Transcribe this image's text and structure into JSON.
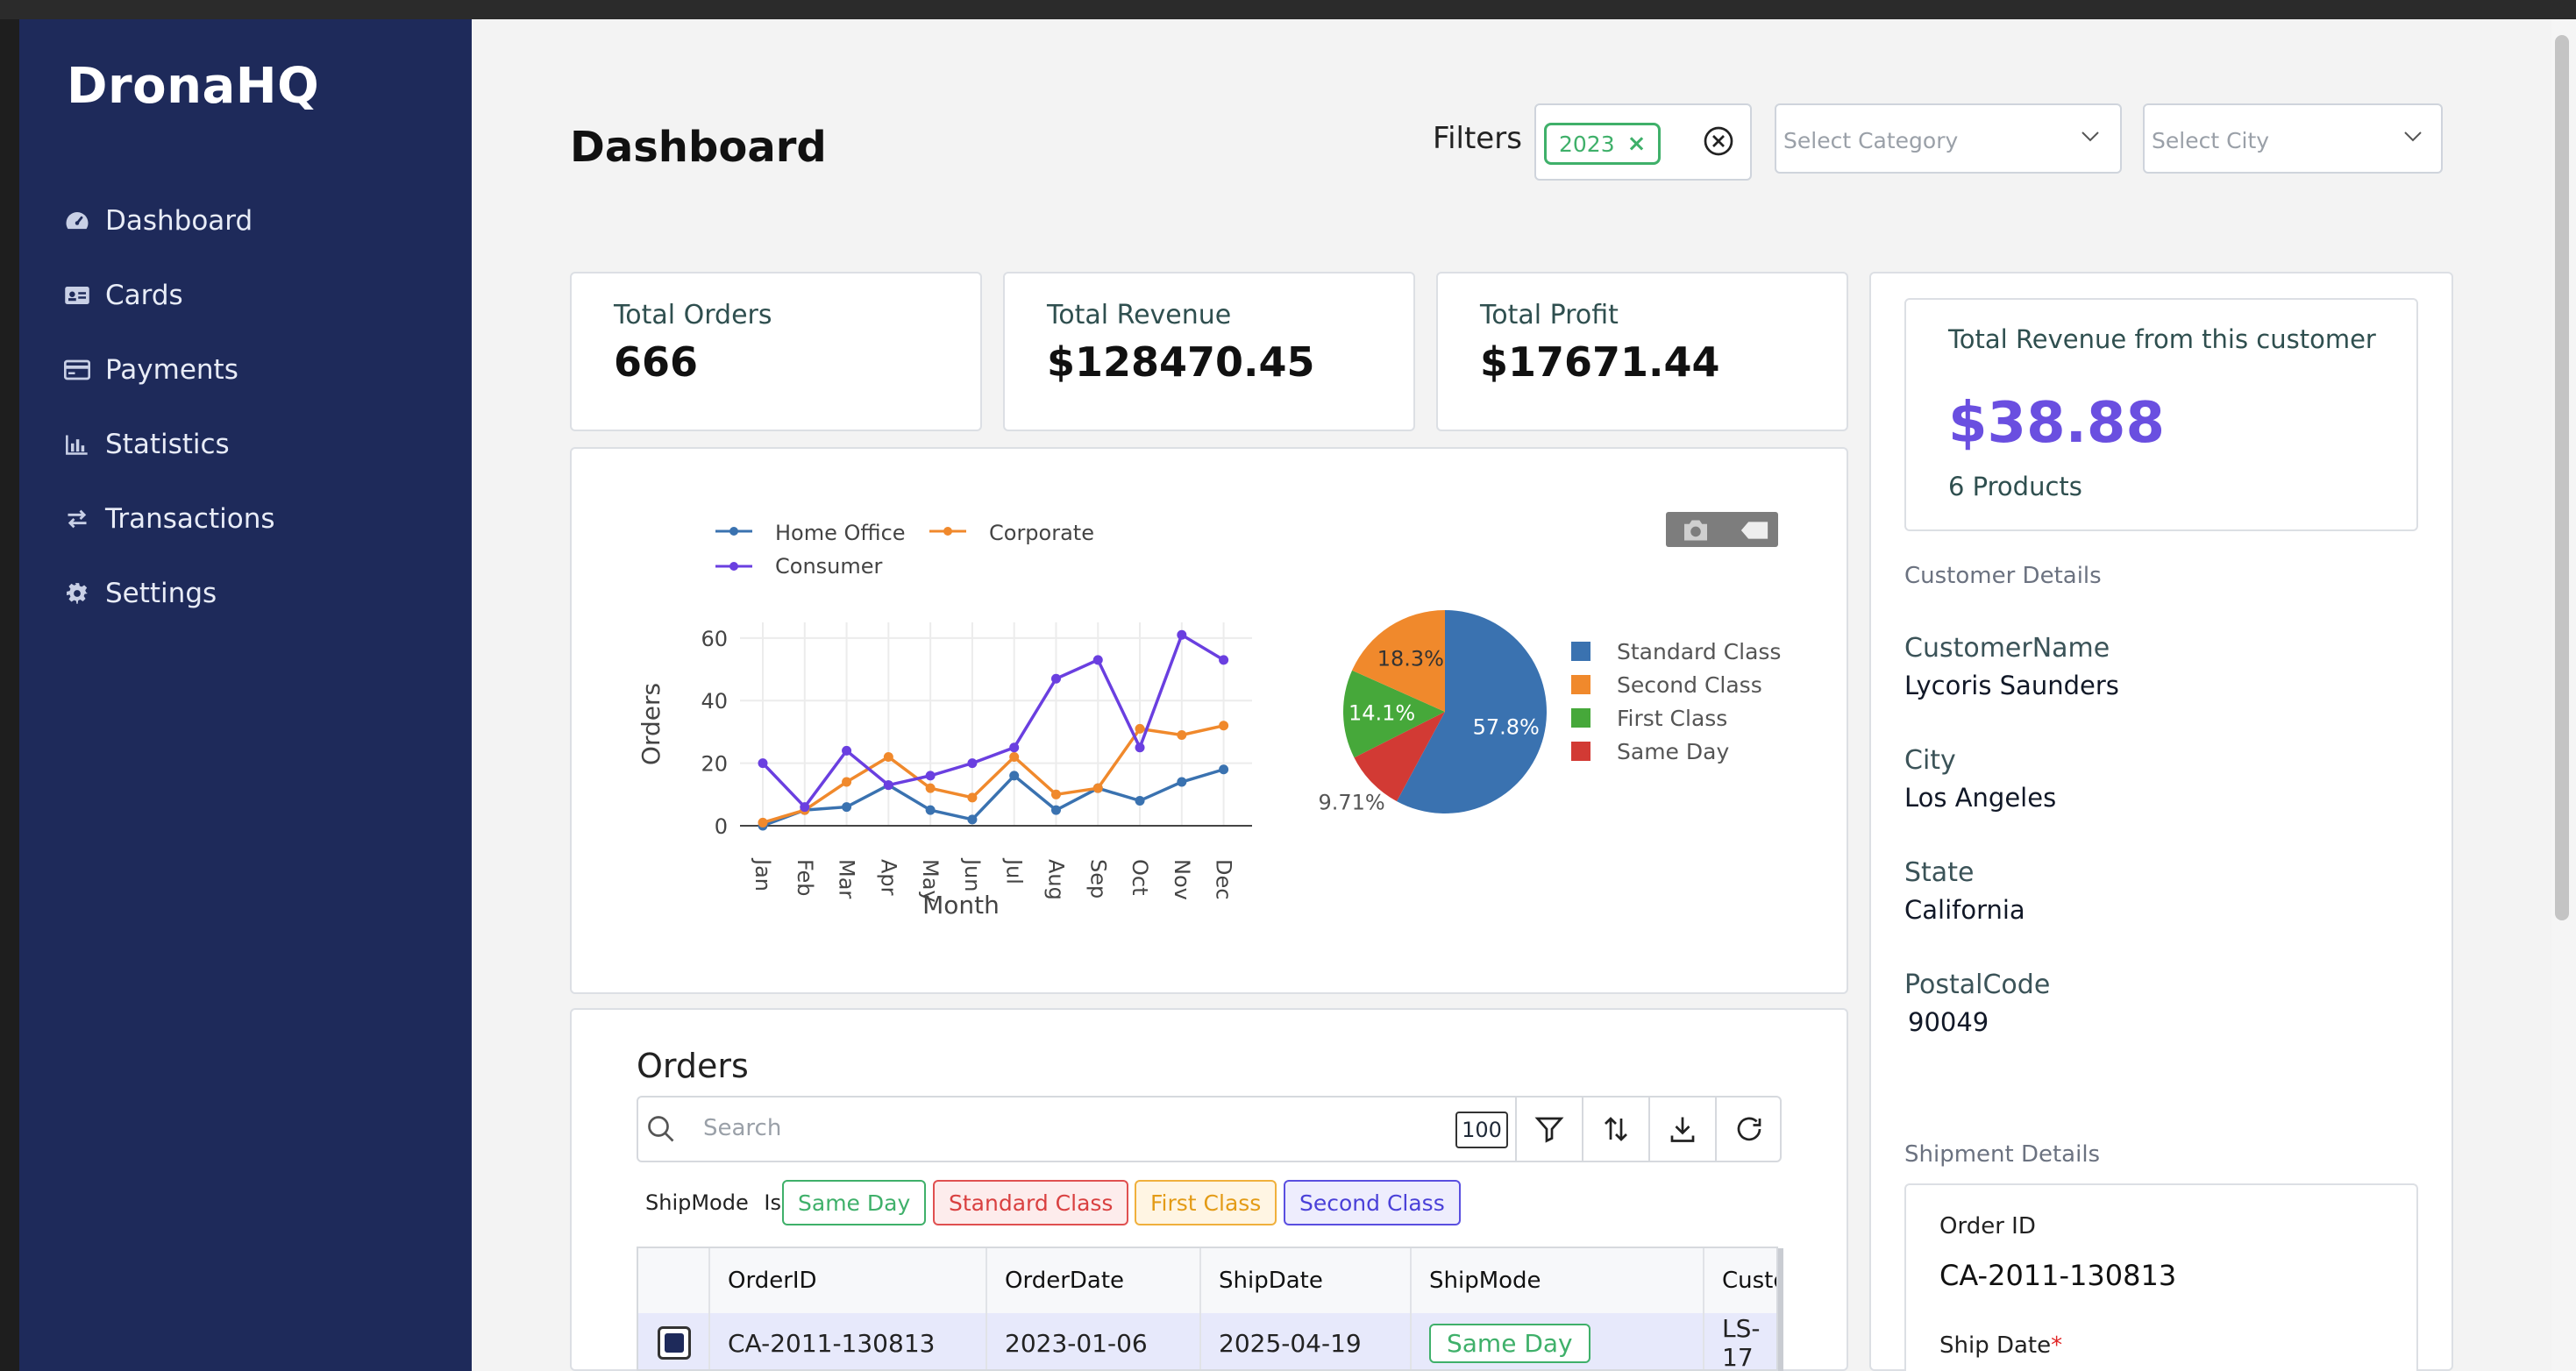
{
  "app": {
    "brand": "DronaHQ"
  },
  "sidebar": {
    "items": [
      {
        "label": "Dashboard",
        "icon": "gauge-icon"
      },
      {
        "label": "Cards",
        "icon": "id-card-icon"
      },
      {
        "label": "Payments",
        "icon": "credit-card-icon"
      },
      {
        "label": "Statistics",
        "icon": "bar-chart-icon"
      },
      {
        "label": "Transactions",
        "icon": "swap-arrows-icon"
      },
      {
        "label": "Settings",
        "icon": "gear-icon"
      }
    ]
  },
  "header": {
    "title": "Dashboard",
    "filters_label": "Filters",
    "year_chip": "2023",
    "category_placeholder": "Select Category",
    "city_placeholder": "Select City"
  },
  "kpis": [
    {
      "label": "Total Orders",
      "value": "666"
    },
    {
      "label": "Total Revenue",
      "value": "$128470.45"
    },
    {
      "label": "Total Profit",
      "value": "$17671.44"
    }
  ],
  "customer_panel": {
    "revenue_label": "Total Revenue from this customer",
    "revenue_value": "$38.88",
    "products": "6 Products",
    "section_customer": "Customer Details",
    "name_label": "CustomerName",
    "name_value": "Lycoris Saunders",
    "city_label": "City",
    "city_value": "Los Angeles",
    "state_label": "State",
    "state_value": "California",
    "postal_label": "PostalCode",
    "postal_value": "90049",
    "section_shipment": "Shipment Details",
    "order_id_label": "Order ID",
    "order_id_value": "CA-2011-130813",
    "ship_date_label": "Ship Date",
    "required_mark": "*"
  },
  "orders": {
    "title": "Orders",
    "search_placeholder": "Search",
    "page_size": "100",
    "filter_prefix": "ShipMode",
    "filter_op": "Is",
    "tags": [
      "Same Day",
      "Standard Class",
      "First Class",
      "Second Class"
    ],
    "columns": [
      "OrderID",
      "OrderDate",
      "ShipDate",
      "ShipMode",
      "Custo"
    ],
    "rows": [
      {
        "OrderID": "CA-2011-130813",
        "OrderDate": "2023-01-06",
        "ShipDate": "2025-04-19",
        "ShipMode": "Same Day",
        "Customer": "LS-17"
      }
    ]
  },
  "colors": {
    "sidebar": "#1e2a5a",
    "accent_purple": "#6a4fe0",
    "home_office": "#3a72b0",
    "corporate": "#f0892c",
    "consumer": "#6a3fe0",
    "standard_class": "#3a72b0",
    "second_class": "#f0892c",
    "first_class": "#46a83a",
    "same_day": "#d23a34"
  },
  "chart_data": [
    {
      "type": "line",
      "xlabel": "Month",
      "ylabel": "Orders",
      "ylim": [
        0,
        65
      ],
      "yticks": [
        0,
        20,
        40,
        60
      ],
      "grid": true,
      "legend": "top-left",
      "categories": [
        "Jan",
        "Feb",
        "Mar",
        "Apr",
        "May",
        "Jun",
        "Jul",
        "Aug",
        "Sep",
        "Oct",
        "Nov",
        "Dec"
      ],
      "series": [
        {
          "name": "Home Office",
          "color": "#3a72b0",
          "values": [
            0,
            5,
            6,
            13,
            5,
            2,
            16,
            5,
            12,
            8,
            14,
            18
          ]
        },
        {
          "name": "Corporate",
          "color": "#f0892c",
          "values": [
            1,
            5,
            14,
            22,
            12,
            9,
            22,
            10,
            12,
            31,
            29,
            32
          ]
        },
        {
          "name": "Consumer",
          "color": "#6a3fe0",
          "values": [
            20,
            6,
            24,
            13,
            16,
            20,
            25,
            47,
            53,
            25,
            61,
            53
          ]
        }
      ]
    },
    {
      "type": "pie",
      "legend": "right",
      "slices": [
        {
          "name": "Standard Class",
          "value": 57.8,
          "label": "57.8%",
          "color": "#3a72b0"
        },
        {
          "name": "Same Day",
          "value": 9.71,
          "label": "9.71%",
          "color": "#d23a34"
        },
        {
          "name": "First Class",
          "value": 14.1,
          "label": "14.1%",
          "color": "#46a83a"
        },
        {
          "name": "Second Class",
          "value": 18.3,
          "label": "18.3%",
          "color": "#f0892c"
        }
      ]
    }
  ]
}
